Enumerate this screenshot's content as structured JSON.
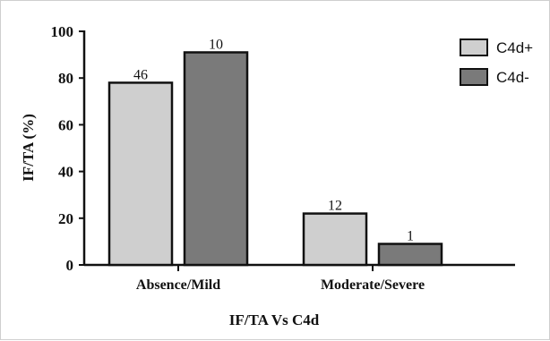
{
  "chart_data": {
    "type": "bar",
    "categories": [
      "Absence/Mild",
      "Moderate/Severe"
    ],
    "series": [
      {
        "name": "C4d+",
        "values": [
          78,
          22
        ],
        "labels": [
          "46",
          "12"
        ],
        "color": "#cfcfcf"
      },
      {
        "name": "C4d-",
        "values": [
          91,
          9
        ],
        "labels": [
          "10",
          "1"
        ],
        "color": "#7a7a7a"
      }
    ],
    "yticks": [
      "0",
      "20",
      "40",
      "60",
      "80",
      "100"
    ],
    "ylim": [
      0,
      100
    ],
    "ylabel": "IF/TA (%)",
    "xlabel": "IF/TA Vs C4d",
    "legend_position": "top-right",
    "grid": false
  }
}
